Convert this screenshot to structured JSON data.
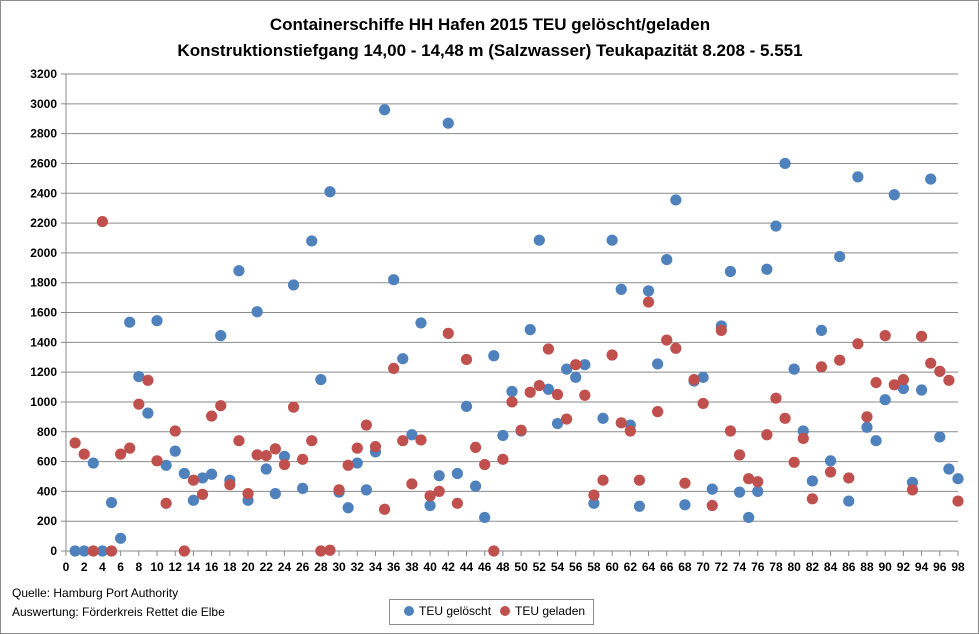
{
  "chart_data": {
    "type": "scatter",
    "title": "Containerschiffe HH Hafen 2015 TEU gelöscht/geladen",
    "subtitle": "Konstruktionstiefgang 14,00 - 14,48 m (Salzwasser)  Teukapazität  8.208 - 5.551",
    "xlim": [
      0,
      98
    ],
    "ylim": [
      0,
      3200
    ],
    "x_ticks": [
      "0",
      "2",
      "4",
      "6",
      "8",
      "10",
      "12",
      "14",
      "16",
      "18",
      "20",
      "22",
      "24",
      "26",
      "28",
      "30",
      "32",
      "34",
      "36",
      "38",
      "40",
      "42",
      "44",
      "46",
      "48",
      "50",
      "52",
      "54",
      "56",
      "58",
      "60",
      "62",
      "64",
      "66",
      "68",
      "70",
      "72",
      "74",
      "76",
      "78",
      "80",
      "82",
      "84",
      "86",
      "88",
      "90",
      "92",
      "94",
      "96",
      "98"
    ],
    "y_ticks": [
      "0",
      "200",
      "400",
      "600",
      "800",
      "1000",
      "1200",
      "1400",
      "1600",
      "1800",
      "2000",
      "2200",
      "2400",
      "2600",
      "2800",
      "3000",
      "3200"
    ],
    "grid": "horizontal",
    "legend_position": "bottom",
    "series": [
      {
        "name": "TEU gelöscht",
        "color": "#4f81bd",
        "values": [
          0,
          0,
          590,
          0,
          325,
          85,
          1535,
          1170,
          925,
          1545,
          575,
          670,
          520,
          340,
          490,
          515,
          1445,
          475,
          1880,
          340,
          1605,
          550,
          385,
          635,
          1785,
          420,
          2080,
          1150,
          2410,
          395,
          290,
          590,
          410,
          665,
          2960,
          1820,
          1290,
          780,
          1530,
          305,
          505,
          2870,
          520,
          970,
          435,
          225,
          1310,
          775,
          1070,
          805,
          1485,
          2085,
          1085,
          855,
          1220,
          1165,
          1250,
          320,
          890,
          2085,
          1755,
          845,
          300,
          1745,
          1255,
          1955,
          2355,
          310,
          1140,
          1165,
          415,
          1510,
          1875,
          395,
          225,
          400,
          1890,
          2180,
          2600,
          1220,
          805,
          470,
          1480,
          605,
          1975,
          335,
          2510,
          830,
          740,
          1015,
          2390,
          1090,
          460,
          1080,
          2495,
          765,
          550,
          485
        ]
      },
      {
        "name": "TEU geladen",
        "color": "#c0504d",
        "values": [
          725,
          650,
          0,
          2210,
          0,
          650,
          690,
          985,
          1145,
          605,
          320,
          805,
          0,
          475,
          380,
          905,
          975,
          445,
          740,
          385,
          645,
          640,
          685,
          580,
          965,
          615,
          740,
          0,
          5,
          410,
          575,
          690,
          845,
          700,
          280,
          1225,
          740,
          450,
          745,
          370,
          400,
          1460,
          320,
          1285,
          695,
          580,
          0,
          615,
          1000,
          810,
          1065,
          1110,
          1355,
          1050,
          885,
          1250,
          1045,
          375,
          475,
          1315,
          860,
          805,
          475,
          1670,
          935,
          1415,
          1360,
          455,
          1150,
          990,
          305,
          1480,
          805,
          645,
          485,
          465,
          780,
          1025,
          890,
          595,
          755,
          350,
          1235,
          530,
          1280,
          490,
          1390,
          900,
          1130,
          1445,
          1115,
          1150,
          410,
          1440,
          1260,
          1205,
          1145,
          335
        ]
      }
    ]
  },
  "notes": {
    "source": "Quelle: Hamburg Port Authority",
    "analysis": "Auswertung: Förderkreis Rettet die Elbe"
  },
  "legend": {
    "items": [
      {
        "label": "TEU gelöscht",
        "color": "#4f81bd"
      },
      {
        "label": "TEU geladen",
        "color": "#c0504d"
      }
    ]
  }
}
